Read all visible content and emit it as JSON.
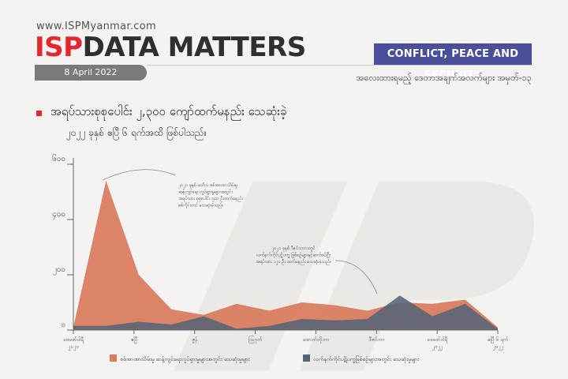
{
  "header": {
    "site": "www.ISPMyanmar.com",
    "brand_isp": "ISP",
    "brand_rest": "DATA MATTERS",
    "date": "8 April 2022",
    "category": "CONFLICT, PEACE AND SECURITY",
    "series_name": "အလေးထားရမည့် ဒေတာအချက်အလက်များ အမှတ်-၁၃"
  },
  "headline": {
    "title": "အရပ်သားစုစုပေါင်း ၂,၃၀၀ ကျော်ထက်မနည်း သေဆုံးခဲ့",
    "subtitle": "၂၀၂၂ ခုနှစ် ဧပြီ ၆ ရက်အထိ ဖြစ်ပါသည်။"
  },
  "colors": {
    "series1": "#d97d5f",
    "series2": "#566478",
    "accent": "#e4262d",
    "category_bg": "#4a4f9a"
  },
  "chart_data": {
    "type": "area",
    "title": "",
    "xlabel": "",
    "ylabel": "",
    "ylim": [
      0,
      600
    ],
    "yticks": [
      "၆၀၀",
      "၄၀၀",
      "၂၀၀",
      "၀"
    ],
    "xtick_labels": [
      "ဖေဖော်ဝါရီ ၂၀၂၁",
      "ဧပြီ",
      "ဇွန်",
      "ဩဂုတ်",
      "အောက်တိုဘာ",
      "ဒီဇင်ဘာ",
      "ဖေဖော်ဝါရီ ၂၀၂၂",
      "ဧပြီ ၆ ရက် ၂၀၂၂"
    ],
    "grid": false,
    "legend_position": "bottom",
    "series": [
      {
        "name": "စစ်အာဏာသိမ်းမှု ဆန့်ကျင်ရေးလှုပ်ရှားမှုများအတွင်း သေဆုံးမှုများ",
        "values": [
          10,
          540,
          200,
          75,
          55,
          95,
          70,
          100,
          90,
          70,
          100,
          95,
          110,
          10
        ]
      },
      {
        "name": "လက်နက်ကိုင်ပဋိပက္ခဖြစ်စဉ်များအတွင်း သေဆုံးမှုများ",
        "values": [
          15,
          15,
          30,
          20,
          50,
          5,
          15,
          40,
          35,
          40,
          125,
          50,
          95,
          5
        ]
      }
    ],
    "annotations": [
      "၂၀၂၁ ခုနှစ် မတ်လ စစ်အာဏာသိမ်းမှု ဆန့်ကျင်ရေး လှုပ်ရှားမှုများအတွင်း အရပ်သား စုစုပေါင်း ၅၀၀ ဦးထက်မနည်း စစ်ကိုင်းတင် သေဆုံးခဲ့သည်။",
      "၂၀၂၁ ခုနှစ် ဒီဇင်ဘာလတွင် လက်နက်ကိုင်ပဋိပက္ခ ဖြစ်စဉ်များနှင့်ဆက်စပ်ပြီး အရပ်သား ၁၂၀ ဦး ထက်မနည်း သေဆုံးခဲ့သည်။"
    ]
  }
}
